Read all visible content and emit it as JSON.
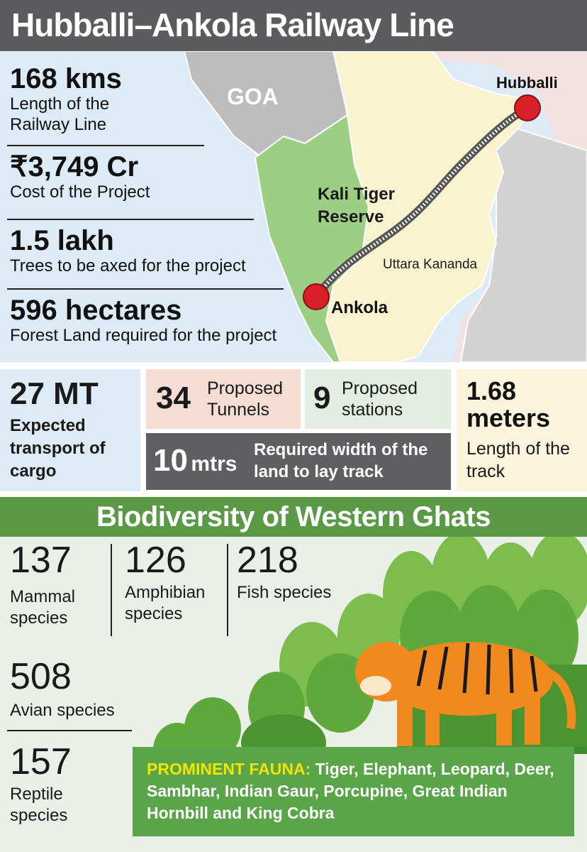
{
  "title": "Hubballi–Ankola Railway Line",
  "map": {
    "labels": {
      "goa": "GOA",
      "hubballi": "Hubballi",
      "ankola": "Ankola",
      "reserve": "Kali Tiger Reserve",
      "district": "Uttara Kananda"
    },
    "colors": {
      "sea": "#dcebf5",
      "goa": "#bdbdbd",
      "reserve": "#9ccf84",
      "district": "#f9f3cf",
      "east": "#f3e2e2",
      "station": "#d72028"
    }
  },
  "stats": [
    {
      "value": "168 kms",
      "label": "Length of the Railway Line"
    },
    {
      "value": "₹3,749 Cr",
      "label": "Cost of the Project"
    },
    {
      "value": "1.5 lakh",
      "label": "Trees to be axed for the project"
    },
    {
      "value": "596 hectares",
      "label": "Forest Land required for the project"
    }
  ],
  "panels": {
    "cargo": {
      "value": "27 MT",
      "label": "Expected transport of cargo"
    },
    "tunnels": {
      "value": "34",
      "label": "Proposed Tunnels"
    },
    "stations": {
      "value": "9",
      "label": "Proposed stations"
    },
    "width": {
      "value": "10",
      "unit": "mtrs",
      "label": "Required width of the land to lay track"
    },
    "track": {
      "value": "1.68 meters",
      "label": "Length of the track"
    }
  },
  "biodiversity": {
    "heading": "Biodiversity of Western Ghats",
    "items": [
      {
        "value": "137",
        "label": "Mammal species"
      },
      {
        "value": "126",
        "label": "Amphibian species"
      },
      {
        "value": "218",
        "label": "Fish species"
      },
      {
        "value": "508",
        "label": "Avian species"
      },
      {
        "value": "157",
        "label": "Reptile species"
      }
    ],
    "fauna_heading": "PROMINENT FAUNA:",
    "fauna_list": "Tiger, Elephant, Leopard, Deer, Sambhar, Indian Gaur, Porcupine, Great Indian Hornbill and King Cobra"
  }
}
